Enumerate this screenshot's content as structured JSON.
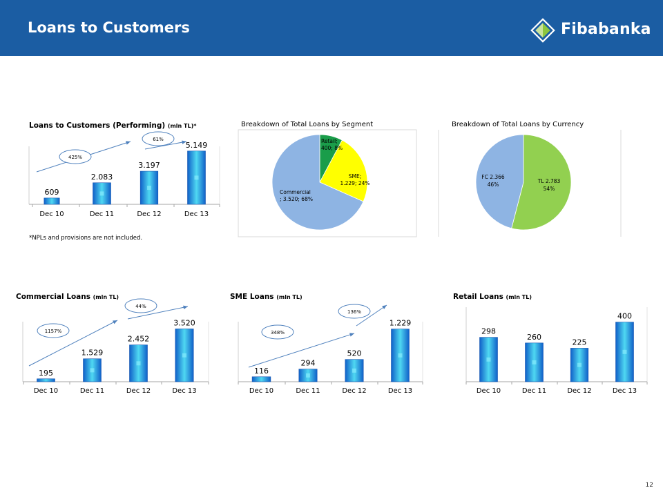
{
  "header": {
    "title": "Loans to Customers",
    "brand": "Fibabanka",
    "colors": {
      "header_bg": "#1b5da3",
      "logo_green": "#8dc63f"
    }
  },
  "page_number": "12",
  "footnote": "*NPLs and provisions are not included.",
  "charts": {
    "performing": {
      "title": "Loans to Customers (Performing)",
      "unit": "(mln TL)*",
      "growth1": "425%",
      "growth2": "61%"
    },
    "segment": {
      "title": "Breakdown of Total Loans by Segment"
    },
    "currency": {
      "title": "Breakdown of Total Loans by Currency"
    },
    "commercial": {
      "title": "Commercial Loans",
      "unit": "(mln TL)",
      "growth1": "1157%",
      "growth2": "44%"
    },
    "sme": {
      "title": "SME Loans",
      "unit": "(mln TL)",
      "growth1": "348%",
      "growth2": "136%"
    },
    "retail": {
      "title": "Retail Loans",
      "unit": "(mln TL)"
    }
  },
  "chart_data": [
    {
      "type": "bar",
      "title": "Loans to Customers (Performing) (mln TL)*",
      "categories": [
        "Dec 10",
        "Dec 11",
        "Dec 12",
        "Dec 13"
      ],
      "values": [
        609,
        2083,
        3197,
        5149
      ],
      "labels": [
        "609",
        "2.083",
        "3.197",
        "5.149"
      ],
      "ylim": [
        0,
        5600
      ],
      "annotations": [
        "425%",
        "61%"
      ]
    },
    {
      "type": "pie",
      "title": "Breakdown of Total Loans by Segment",
      "series": [
        {
          "name": "Retail",
          "value": 400,
          "percent": 8,
          "label": [
            "Retail;",
            "400; 8%"
          ],
          "color": "#1a9d4a"
        },
        {
          "name": "SME",
          "value": 1229,
          "percent": 24,
          "label": [
            "SME;",
            "1.229; 24%"
          ],
          "color": "#ffff00"
        },
        {
          "name": "Commercial",
          "value": 3520,
          "percent": 68,
          "label": [
            "Commercial",
            "; 3.520; 68%"
          ],
          "color": "#8eb4e3"
        }
      ]
    },
    {
      "type": "pie",
      "title": "Breakdown of Total Loans by Currency",
      "series": [
        {
          "name": "TL",
          "value": 2783,
          "percent": 54,
          "label": [
            "TL 2.783",
            "54%"
          ],
          "color": "#92d050"
        },
        {
          "name": "FC",
          "value": 2366,
          "percent": 46,
          "label": [
            "FC 2.366",
            "46%"
          ],
          "color": "#8eb4e3"
        }
      ]
    },
    {
      "type": "bar",
      "title": "Commercial Loans (mln TL)",
      "categories": [
        "Dec 10",
        "Dec 11",
        "Dec 12",
        "Dec 13"
      ],
      "values": [
        195,
        1529,
        2452,
        3520
      ],
      "labels": [
        "195",
        "1.529",
        "2.452",
        "3.520"
      ],
      "ylim": [
        0,
        4000
      ],
      "annotations": [
        "1157%",
        "44%"
      ]
    },
    {
      "type": "bar",
      "title": "SME Loans (mln TL)",
      "categories": [
        "Dec 10",
        "Dec 11",
        "Dec 12",
        "Dec 13"
      ],
      "values": [
        116,
        294,
        520,
        1229
      ],
      "labels": [
        "116",
        "294",
        "520",
        "1.229"
      ],
      "ylim": [
        0,
        1400
      ],
      "annotations": [
        "348%",
        "136%"
      ]
    },
    {
      "type": "bar",
      "title": "Retail Loans (mln TL)",
      "categories": [
        "Dec 10",
        "Dec 11",
        "Dec 12",
        "Dec 13"
      ],
      "values": [
        298,
        260,
        225,
        400
      ],
      "labels": [
        "298",
        "260",
        "225",
        "400"
      ],
      "ylim": [
        0,
        500
      ]
    }
  ]
}
